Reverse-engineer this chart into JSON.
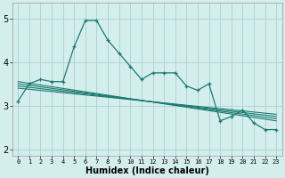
{
  "xlabel": "Humidex (Indice chaleur)",
  "background_color": "#d4eeee",
  "grid_color": "#aed4d4",
  "line_color": "#1a7a6e",
  "x_ticks": [
    0,
    1,
    2,
    3,
    4,
    5,
    6,
    7,
    8,
    9,
    10,
    11,
    12,
    13,
    14,
    15,
    16,
    17,
    18,
    19,
    20,
    21,
    22,
    23
  ],
  "y_ticks": [
    2,
    3,
    4,
    5
  ],
  "ylim": [
    1.85,
    5.35
  ],
  "xlim": [
    -0.5,
    23.5
  ],
  "main_x": [
    0,
    1,
    2,
    3,
    4,
    5,
    6,
    7,
    8,
    9,
    10,
    11,
    12,
    13,
    14,
    15,
    16,
    17,
    18,
    19,
    20,
    21,
    22,
    23
  ],
  "main_y": [
    3.1,
    3.5,
    3.6,
    3.55,
    3.55,
    4.35,
    4.95,
    4.95,
    4.5,
    4.2,
    3.9,
    3.6,
    3.75,
    3.75,
    3.75,
    3.45,
    3.35,
    3.5,
    2.65,
    2.75,
    2.9,
    2.6,
    2.45,
    2.45
  ],
  "trend_lines": [
    {
      "x": [
        0,
        23
      ],
      "y": [
        3.55,
        2.65
      ]
    },
    {
      "x": [
        0,
        23
      ],
      "y": [
        3.5,
        2.7
      ]
    },
    {
      "x": [
        0,
        23
      ],
      "y": [
        3.45,
        2.75
      ]
    },
    {
      "x": [
        0,
        23
      ],
      "y": [
        3.4,
        2.8
      ]
    }
  ]
}
